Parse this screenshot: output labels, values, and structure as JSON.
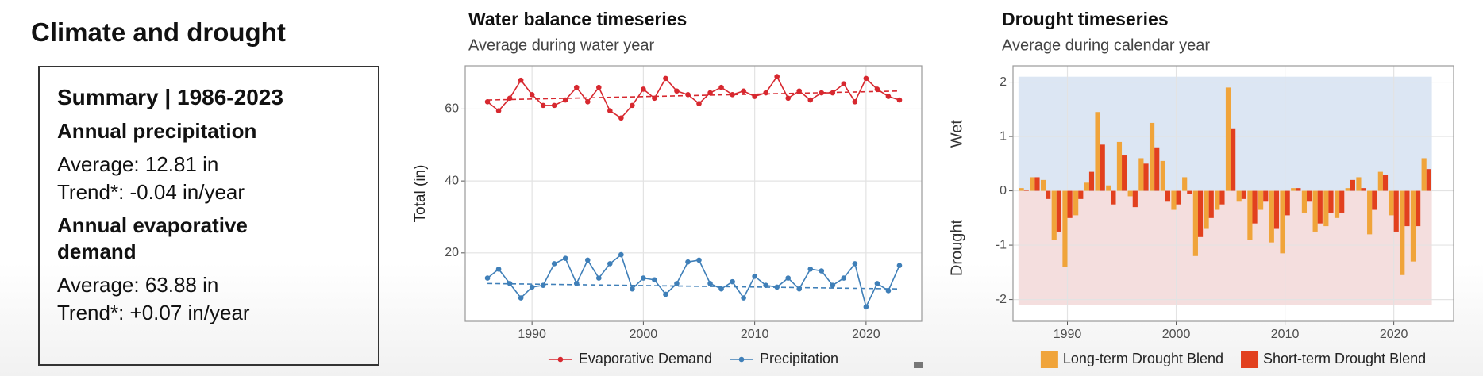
{
  "panel": {
    "title": "Climate and drought",
    "summary": {
      "heading": "Summary | 1986-2023",
      "sections": [
        {
          "title": "Annual precipitation",
          "average": "Average: 12.81 in",
          "trend": "Trend*: -0.04 in/year"
        },
        {
          "title": "Annual evaporative demand",
          "average": "Average: 63.88 in",
          "trend": "Trend*: +0.07 in/year"
        }
      ]
    }
  },
  "chart_data": [
    {
      "type": "line",
      "title": "Water balance timeseries",
      "subtitle": "Average during water year",
      "ylabel": "Total (in)",
      "x": [
        1986,
        1987,
        1988,
        1989,
        1990,
        1991,
        1992,
        1993,
        1994,
        1995,
        1996,
        1997,
        1998,
        1999,
        2000,
        2001,
        2002,
        2003,
        2004,
        2005,
        2006,
        2007,
        2008,
        2009,
        2010,
        2011,
        2012,
        2013,
        2014,
        2015,
        2016,
        2017,
        2018,
        2019,
        2020,
        2021,
        2022,
        2023
      ],
      "series": [
        {
          "name": "Evaporative Demand",
          "color": "#d7282f",
          "trend": [
            62.5,
            65
          ],
          "values": [
            62,
            59.5,
            63,
            68,
            64,
            61,
            61,
            62.5,
            66,
            62,
            66,
            59.5,
            57.5,
            61,
            65.5,
            63,
            68.5,
            65,
            64,
            61.5,
            64.5,
            66,
            64,
            65,
            63.5,
            64.5,
            69,
            63,
            65,
            62.5,
            64.5,
            64.5,
            67,
            62,
            68.5,
            65.5,
            63.5,
            62.5
          ]
        },
        {
          "name": "Precipitation",
          "color": "#3f7fb8",
          "trend": [
            11.5,
            10
          ],
          "values": [
            13,
            15.5,
            11.5,
            7.5,
            10.5,
            11,
            17,
            18.5,
            11.5,
            18,
            13,
            17,
            19.5,
            10,
            13,
            12.5,
            8.5,
            11.5,
            17.5,
            18,
            11.5,
            10,
            12,
            7.5,
            13.5,
            11,
            10.5,
            13,
            10,
            15.5,
            15,
            11,
            13,
            17,
            5,
            11.5,
            9.5,
            16.5
          ]
        }
      ],
      "xlim": [
        1984,
        2025
      ],
      "ylim": [
        1,
        72
      ],
      "xticks": [
        1990,
        2000,
        2010,
        2020
      ],
      "yticks": [
        20,
        40,
        60
      ],
      "grid": true,
      "legend": "bottom"
    },
    {
      "type": "bar",
      "title": "Drought timeseries",
      "subtitle": "Average during calendar year",
      "x": [
        1986,
        1987,
        1988,
        1989,
        1990,
        1991,
        1992,
        1993,
        1994,
        1995,
        1996,
        1997,
        1998,
        1999,
        2000,
        2001,
        2002,
        2003,
        2004,
        2005,
        2006,
        2007,
        2008,
        2009,
        2010,
        2011,
        2012,
        2013,
        2014,
        2015,
        2016,
        2017,
        2018,
        2019,
        2020,
        2021,
        2022,
        2023
      ],
      "series": [
        {
          "name": "Long-term Drought Blend",
          "color": "#f0a43a",
          "values": [
            0.05,
            0.25,
            0.2,
            -0.9,
            -1.4,
            -0.45,
            0.15,
            1.45,
            0.1,
            0.9,
            -0.1,
            0.6,
            1.25,
            0.55,
            -0.35,
            0.25,
            -1.2,
            -0.7,
            -0.35,
            1.9,
            -0.2,
            -0.9,
            -0.35,
            -0.95,
            -1.15,
            0.05,
            -0.4,
            -0.75,
            -0.65,
            -0.5,
            0.05,
            0.25,
            -0.8,
            0.35,
            -0.45,
            -1.55,
            -1.3,
            0.6
          ]
        },
        {
          "name": "Short-term Drought Blend",
          "color": "#e2401e",
          "values": [
            0.02,
            0.25,
            -0.15,
            -0.75,
            -0.5,
            -0.15,
            0.35,
            0.85,
            -0.25,
            0.65,
            -0.3,
            0.5,
            0.8,
            -0.2,
            -0.25,
            -0.05,
            -0.85,
            -0.5,
            -0.25,
            1.15,
            -0.15,
            -0.6,
            -0.2,
            -0.7,
            -0.45,
            0.05,
            -0.2,
            -0.6,
            -0.4,
            -0.4,
            0.2,
            0.05,
            -0.35,
            0.3,
            -0.75,
            -0.65,
            -0.65,
            0.4
          ]
        }
      ],
      "shading": [
        {
          "label": "Wet",
          "range": [
            0,
            2.1
          ],
          "color": "#dce6f3"
        },
        {
          "label": "Drought",
          "range": [
            -2.1,
            0
          ],
          "color": "#f4dede"
        }
      ],
      "xlim": [
        1985,
        2025.5
      ],
      "ylim": [
        -2.4,
        2.3
      ],
      "xticks": [
        1990,
        2000,
        2010,
        2020
      ],
      "yticks": [
        -2,
        -1,
        0,
        1,
        2
      ],
      "grid": true,
      "legend": "bottom"
    }
  ]
}
